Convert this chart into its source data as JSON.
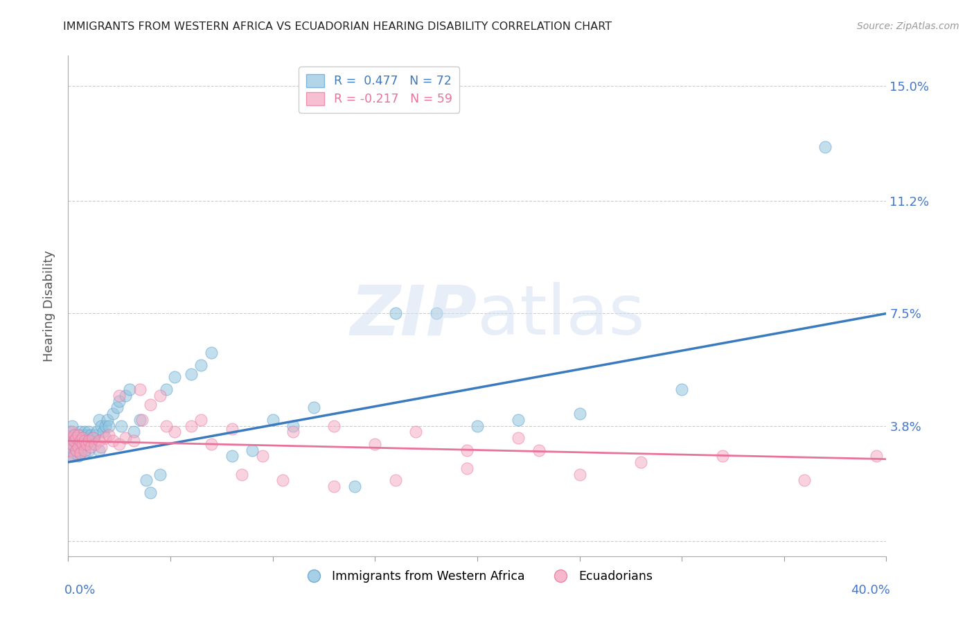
{
  "title": "IMMIGRANTS FROM WESTERN AFRICA VS ECUADORIAN HEARING DISABILITY CORRELATION CHART",
  "source": "Source: ZipAtlas.com",
  "ylabel": "Hearing Disability",
  "yticks": [
    0.0,
    0.038,
    0.075,
    0.112,
    0.15
  ],
  "ytick_labels": [
    "",
    "3.8%",
    "7.5%",
    "11.2%",
    "15.0%"
  ],
  "xlim": [
    0.0,
    0.4
  ],
  "ylim": [
    -0.005,
    0.16
  ],
  "blue_R": 0.477,
  "blue_N": 72,
  "pink_R": -0.217,
  "pink_N": 59,
  "legend_label_blue": "Immigrants from Western Africa",
  "legend_label_pink": "Ecuadorians",
  "blue_color": "#92c5de",
  "pink_color": "#f4a6c0",
  "blue_edge_color": "#5a9fd4",
  "pink_edge_color": "#e8729a",
  "blue_line_color": "#3a7bbf",
  "pink_line_color": "#e8729a",
  "watermark_color": "#d0dff0",
  "background_color": "#ffffff",
  "grid_color": "#cccccc",
  "blue_line_start_y": 0.026,
  "blue_line_end_y": 0.075,
  "pink_line_start_y": 0.033,
  "pink_line_end_y": 0.027,
  "blue_scatter_x": [
    0.001,
    0.001,
    0.001,
    0.002,
    0.002,
    0.002,
    0.002,
    0.003,
    0.003,
    0.003,
    0.003,
    0.004,
    0.004,
    0.004,
    0.005,
    0.005,
    0.005,
    0.006,
    0.006,
    0.006,
    0.006,
    0.007,
    0.007,
    0.007,
    0.008,
    0.008,
    0.008,
    0.009,
    0.009,
    0.01,
    0.01,
    0.011,
    0.011,
    0.012,
    0.013,
    0.014,
    0.015,
    0.015,
    0.016,
    0.017,
    0.018,
    0.019,
    0.02,
    0.022,
    0.024,
    0.025,
    0.026,
    0.028,
    0.03,
    0.032,
    0.035,
    0.038,
    0.04,
    0.045,
    0.048,
    0.052,
    0.06,
    0.065,
    0.07,
    0.08,
    0.09,
    0.1,
    0.11,
    0.12,
    0.14,
    0.16,
    0.18,
    0.2,
    0.22,
    0.25,
    0.3,
    0.37
  ],
  "blue_scatter_y": [
    0.033,
    0.036,
    0.03,
    0.034,
    0.032,
    0.028,
    0.038,
    0.033,
    0.031,
    0.035,
    0.029,
    0.034,
    0.032,
    0.03,
    0.035,
    0.033,
    0.028,
    0.036,
    0.034,
    0.032,
    0.029,
    0.035,
    0.033,
    0.031,
    0.036,
    0.034,
    0.029,
    0.035,
    0.032,
    0.036,
    0.03,
    0.035,
    0.033,
    0.034,
    0.035,
    0.036,
    0.04,
    0.03,
    0.038,
    0.036,
    0.038,
    0.04,
    0.038,
    0.042,
    0.044,
    0.046,
    0.038,
    0.048,
    0.05,
    0.036,
    0.04,
    0.02,
    0.016,
    0.022,
    0.05,
    0.054,
    0.055,
    0.058,
    0.062,
    0.028,
    0.03,
    0.04,
    0.038,
    0.044,
    0.018,
    0.075,
    0.075,
    0.038,
    0.04,
    0.042,
    0.05,
    0.13
  ],
  "pink_scatter_x": [
    0.001,
    0.001,
    0.002,
    0.002,
    0.003,
    0.003,
    0.003,
    0.004,
    0.004,
    0.005,
    0.005,
    0.006,
    0.006,
    0.007,
    0.007,
    0.008,
    0.008,
    0.009,
    0.01,
    0.011,
    0.012,
    0.013,
    0.015,
    0.016,
    0.018,
    0.02,
    0.022,
    0.025,
    0.028,
    0.032,
    0.036,
    0.04,
    0.045,
    0.052,
    0.06,
    0.07,
    0.08,
    0.095,
    0.11,
    0.13,
    0.15,
    0.17,
    0.195,
    0.22,
    0.25,
    0.28,
    0.32,
    0.36,
    0.395,
    0.025,
    0.035,
    0.048,
    0.065,
    0.085,
    0.105,
    0.13,
    0.16,
    0.195,
    0.23
  ],
  "pink_scatter_y": [
    0.034,
    0.03,
    0.036,
    0.032,
    0.035,
    0.033,
    0.028,
    0.034,
    0.03,
    0.035,
    0.031,
    0.033,
    0.029,
    0.034,
    0.032,
    0.033,
    0.03,
    0.032,
    0.033,
    0.031,
    0.034,
    0.032,
    0.033,
    0.031,
    0.034,
    0.035,
    0.033,
    0.032,
    0.034,
    0.033,
    0.04,
    0.045,
    0.048,
    0.036,
    0.038,
    0.032,
    0.037,
    0.028,
    0.036,
    0.038,
    0.032,
    0.036,
    0.03,
    0.034,
    0.022,
    0.026,
    0.028,
    0.02,
    0.028,
    0.048,
    0.05,
    0.038,
    0.04,
    0.022,
    0.02,
    0.018,
    0.02,
    0.024,
    0.03
  ]
}
